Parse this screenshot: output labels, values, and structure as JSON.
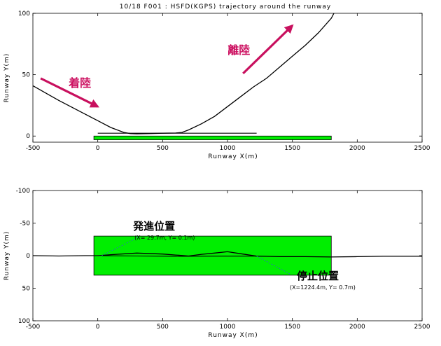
{
  "title": "10/18 F001 : HSFD(KGPS) trajectory around the runway",
  "colors": {
    "runway": "#00ee00",
    "arrow": "#c8105e",
    "trajectory": "#000000",
    "leader": "#3355dd"
  },
  "chart_data": [
    {
      "type": "line",
      "xlabel": "Runway X(m)",
      "ylabel": "Runway Y(m)",
      "xlim": [
        -500,
        2500
      ],
      "ylim": [
        -5,
        100
      ],
      "xticks": [
        "-500",
        "0",
        "500",
        "1000",
        "1500",
        "2000",
        "2500"
      ],
      "yticks": [
        "0",
        "50",
        "100"
      ],
      "runway_rect": {
        "x": [
          -30,
          1800
        ],
        "y": [
          -3,
          0
        ]
      },
      "series": [
        {
          "x": [
            -500,
            -400,
            -300,
            -200,
            -100,
            0,
            100,
            200,
            250,
            300,
            400,
            500,
            600,
            650,
            700,
            800,
            900,
            1000,
            1100,
            1200,
            1300,
            1400,
            1500,
            1600,
            1700,
            1800,
            1820
          ],
          "y": [
            41,
            35,
            29,
            23.5,
            18,
            12.5,
            7,
            3,
            2,
            1.8,
            2,
            2.3,
            2.5,
            3,
            5,
            10,
            16,
            24,
            32,
            40,
            47,
            56,
            65,
            74,
            84,
            96,
            100
          ]
        },
        {
          "x": [
            0,
            1224.4
          ],
          "y": [
            2.3,
            2.3
          ]
        }
      ],
      "annotations": [
        {
          "text": "着陸",
          "from": [
            -440,
            47
          ],
          "to": [
            0,
            24
          ]
        },
        {
          "text": "離陸",
          "from": [
            1120,
            51
          ],
          "to": [
            1500,
            90
          ]
        }
      ]
    },
    {
      "type": "line",
      "xlabel": "Runway X(m)",
      "ylabel": "Runway Y(m)",
      "xlim": [
        -500,
        2500
      ],
      "ylim": [
        100,
        -100
      ],
      "xticks": [
        "-500",
        "0",
        "500",
        "1000",
        "1500",
        "2000",
        "2500"
      ],
      "yticks": [
        "-100",
        "-50",
        "0",
        "50",
        "100"
      ],
      "runway_rect": {
        "x": [
          -30,
          1800
        ],
        "y": [
          -30,
          30
        ]
      },
      "series": [
        {
          "x": [
            -500,
            -300,
            -100,
            0,
            100,
            300,
            500,
            600,
            700,
            800,
            900,
            1000,
            1100,
            1224.4,
            1400,
            1600,
            1800,
            2000,
            2200,
            2500
          ],
          "y": [
            0,
            0.5,
            0,
            0,
            -1.5,
            -4,
            -2.5,
            -1,
            0.5,
            -2,
            -4,
            -6,
            -3,
            0.7,
            1.5,
            1.5,
            2,
            1.5,
            1,
            1
          ]
        },
        {
          "x": [
            29.7,
            300,
            600,
            900,
            1224.4
          ],
          "y": [
            0.1,
            0.5,
            1,
            0.8,
            0.7
          ]
        }
      ],
      "annotations": [
        {
          "label": "発進位置",
          "coord": "(X=  29.7m, Y=  0.1m)",
          "point": [
            29.7,
            0.1
          ],
          "anchor": [
            310,
            -28
          ]
        },
        {
          "label": "停止位置",
          "coord": "(X=1224.4m, Y=  0.7m)",
          "point": [
            1224.4,
            0.7
          ],
          "anchor": [
            1480,
            28
          ]
        }
      ]
    }
  ]
}
